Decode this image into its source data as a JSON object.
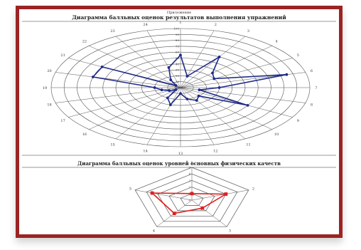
{
  "header": {
    "top_caption": "Приложение",
    "chart1_title": "Диаграмма балльных оценок результатов выполнения упражнений",
    "chart2_title": "Диаграмма балльных оценок уровней основных физических качеств"
  },
  "colors": {
    "frame": "#9c2323",
    "series1": "#1f2a8a",
    "series2": "#e02020",
    "grid": "#555555"
  },
  "chart_data": [
    {
      "type": "radar",
      "title": "Диаграмма балльных оценок результатов выполнения упражнений",
      "categories": [
        "1",
        "2",
        "3",
        "4",
        "5",
        "6",
        "7",
        "8",
        "9",
        "10",
        "11",
        "12",
        "13",
        "14",
        "15",
        "16",
        "17",
        "18",
        "19",
        "20",
        "21",
        "22",
        "23",
        "24"
      ],
      "radial_ticks": [
        "0",
        "10",
        "20",
        "30",
        "40",
        "50",
        "60",
        "70",
        "80",
        "90",
        "100"
      ],
      "rlim": [
        0,
        100
      ],
      "series": [
        {
          "values": [
            55,
            20,
            60,
            35,
            30,
            85,
            30,
            15,
            60,
            20,
            25,
            20,
            10,
            30,
            20,
            5,
            10,
            15,
            20,
            70,
            70,
            5,
            15,
            35
          ]
        }
      ]
    },
    {
      "type": "radar",
      "title": "Диаграмма балльных оценок уровней основных физических качеств",
      "categories": [
        "1",
        "2",
        "3",
        "4",
        "5"
      ],
      "radial_ticks": [
        "0",
        "1",
        "2",
        "3",
        "4",
        "5"
      ],
      "rlim": [
        0,
        5
      ],
      "series": [
        {
          "values": [
            1,
            3,
            1.5,
            2.5,
            3.5
          ]
        }
      ]
    }
  ]
}
